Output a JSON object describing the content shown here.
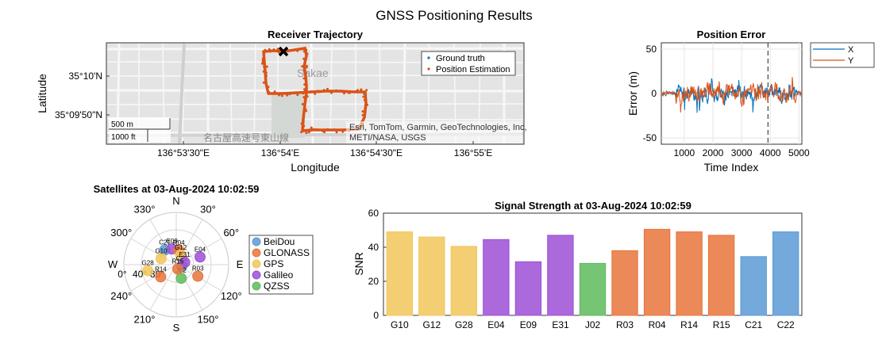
{
  "figure": {
    "title": "GNSS Positioning Results"
  },
  "trajectory": {
    "title": "Receiver Trajectory",
    "xlabel": "Longitude",
    "ylabel": "Latitude",
    "xticks": [
      "136°53'30\"E",
      "136°54'E",
      "136°54'30\"E",
      "136°55'E"
    ],
    "yticks": [
      "35°10'N",
      "35°09'50\"N"
    ],
    "legend": [
      "Ground truth",
      "Position Estimation"
    ],
    "map_label": "Sakae",
    "road_label": "名古屋高速号東山線",
    "scalebar": [
      "500 m",
      "1000 ft"
    ],
    "attribution_1": "Esri, TomTom, Garmin, GeoTechnologies, Inc,",
    "attribution_2": "METI/NASA, USGS",
    "colors": {
      "truth": "#0072BD",
      "estimate": "#D95319"
    }
  },
  "chart_data": [
    {
      "type": "line",
      "title": "Position Error",
      "xlabel": "Time Index",
      "ylabel": "Error (m)",
      "xlim": [
        200,
        5100
      ],
      "ylim": [
        -57,
        57
      ],
      "xticks": [
        1000,
        2000,
        3000,
        4000,
        5000
      ],
      "yticks": [
        50,
        0,
        -50
      ],
      "series": [
        {
          "name": "X",
          "color": "#0072BD"
        },
        {
          "name": "Y",
          "color": "#D95319"
        }
      ],
      "marker_x": 3920
    },
    {
      "type": "bar",
      "title": "Signal Strength at 03-Aug-2024 10:02:59",
      "ylabel": "SNR",
      "ylim": [
        0,
        60
      ],
      "yticks": [
        0,
        20,
        40,
        60
      ],
      "categories": [
        "G10",
        "G12",
        "G28",
        "E04",
        "E09",
        "E31",
        "J02",
        "R03",
        "R04",
        "R14",
        "R15",
        "C21",
        "C22"
      ],
      "values": [
        49,
        46,
        40.5,
        44.5,
        31.5,
        47,
        30.5,
        38,
        50.5,
        49,
        47,
        34.5,
        49
      ],
      "constellations": [
        "GPS",
        "GPS",
        "GPS",
        "Galileo",
        "Galileo",
        "Galileo",
        "QZSS",
        "GLONASS",
        "GLONASS",
        "GLONASS",
        "GLONASS",
        "BeiDou",
        "BeiDou"
      ]
    },
    {
      "type": "scatter",
      "title": "Satellites at 03-Aug-2024 10:02:59",
      "compass": [
        "N",
        "30°",
        "60°",
        "E",
        "120°",
        "150°",
        "S",
        "210°",
        "240°",
        "W",
        "300°",
        "330°"
      ],
      "radial_ticks": [
        "0°",
        "40°",
        "80°"
      ],
      "legend": [
        "BeiDou",
        "GLONASS",
        "GPS",
        "Galileo",
        "QZSS"
      ],
      "colors": {
        "BeiDou": "#5A9BD5",
        "GLONASS": "#E8743B",
        "GPS": "#F2C65A",
        "Galileo": "#9C4FD6",
        "QZSS": "#5DBB5D"
      },
      "satellites": [
        {
          "id": "C21",
          "constellation": "BeiDou",
          "az": 322,
          "el": 58
        },
        {
          "id": "E09",
          "constellation": "Galileo",
          "az": 345,
          "el": 62
        },
        {
          "id": "G10",
          "constellation": "GPS",
          "az": 292,
          "el": 62
        },
        {
          "id": "R04",
          "constellation": "GLONASS",
          "az": 10,
          "el": 65
        },
        {
          "id": "G12",
          "constellation": "GPS",
          "az": 25,
          "el": 72
        },
        {
          "id": "E04",
          "constellation": "Galileo",
          "az": 72,
          "el": 47
        },
        {
          "id": "G28",
          "constellation": "GPS",
          "az": 258,
          "el": 40
        },
        {
          "id": "C22",
          "constellation": "BeiDou",
          "az": 105,
          "el": 80
        },
        {
          "id": "E31",
          "constellation": "Galileo",
          "az": 75,
          "el": 75
        },
        {
          "id": "R14",
          "constellation": "GLONASS",
          "az": 232,
          "el": 56
        },
        {
          "id": "J02",
          "constellation": "QZSS",
          "az": 160,
          "el": 65
        },
        {
          "id": "R03",
          "constellation": "GLONASS",
          "az": 118,
          "el": 48
        },
        {
          "id": "R15",
          "constellation": "GLONASS",
          "az": 160,
          "el": 82
        }
      ]
    }
  ]
}
